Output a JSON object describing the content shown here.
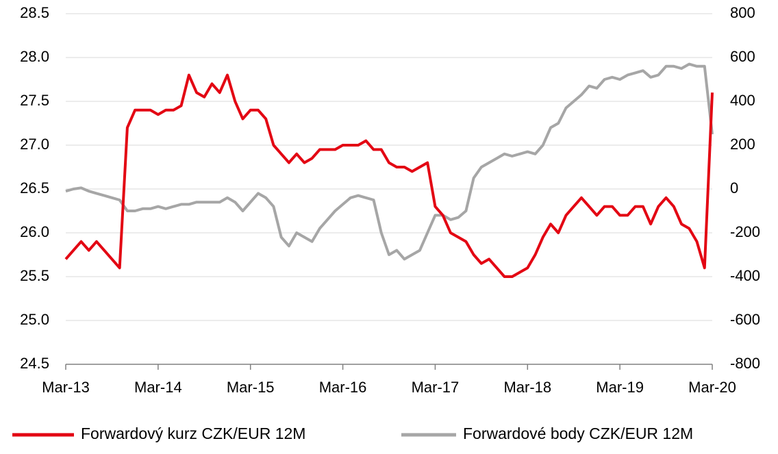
{
  "chart_data": {
    "type": "line",
    "x": [
      "2013-03",
      "2013-04",
      "2013-05",
      "2013-06",
      "2013-07",
      "2013-08",
      "2013-09",
      "2013-10",
      "2013-11",
      "2013-12",
      "2014-01",
      "2014-02",
      "2014-03",
      "2014-04",
      "2014-05",
      "2014-06",
      "2014-07",
      "2014-08",
      "2014-09",
      "2014-10",
      "2014-11",
      "2014-12",
      "2015-01",
      "2015-02",
      "2015-03",
      "2015-04",
      "2015-05",
      "2015-06",
      "2015-07",
      "2015-08",
      "2015-09",
      "2015-10",
      "2015-11",
      "2015-12",
      "2016-01",
      "2016-02",
      "2016-03",
      "2016-04",
      "2016-05",
      "2016-06",
      "2016-07",
      "2016-08",
      "2016-09",
      "2016-10",
      "2016-11",
      "2016-12",
      "2017-01",
      "2017-02",
      "2017-03",
      "2017-04",
      "2017-05",
      "2017-06",
      "2017-07",
      "2017-08",
      "2017-09",
      "2017-10",
      "2017-11",
      "2017-12",
      "2018-01",
      "2018-02",
      "2018-03",
      "2018-04",
      "2018-05",
      "2018-06",
      "2018-07",
      "2018-08",
      "2018-09",
      "2018-10",
      "2018-11",
      "2018-12",
      "2019-01",
      "2019-02",
      "2019-03",
      "2019-04",
      "2019-05",
      "2019-06",
      "2019-07",
      "2019-08",
      "2019-09",
      "2019-10",
      "2019-11",
      "2019-12",
      "2020-01",
      "2020-02",
      "2020-03"
    ],
    "series": [
      {
        "name": "Forwardový kurz CZK/EUR 12M",
        "color": "#e30613",
        "values": [
          25.7,
          25.8,
          25.9,
          25.8,
          25.9,
          25.8,
          25.7,
          25.6,
          27.2,
          27.4,
          27.4,
          27.4,
          27.35,
          27.4,
          27.4,
          27.45,
          27.8,
          27.6,
          27.55,
          27.7,
          27.6,
          27.8,
          27.5,
          27.3,
          27.4,
          27.4,
          27.3,
          27.0,
          26.9,
          26.8,
          26.9,
          26.8,
          26.85,
          26.95,
          26.95,
          26.95,
          27.0,
          27.0,
          27.0,
          27.05,
          26.95,
          26.95,
          26.8,
          26.75,
          26.75,
          26.7,
          26.75,
          26.8,
          26.3,
          26.2,
          26.0,
          25.95,
          25.9,
          25.75,
          25.65,
          25.7,
          25.6,
          25.5,
          25.5,
          25.55,
          25.6,
          25.75,
          25.95,
          26.1,
          26.0,
          26.2,
          26.3,
          26.4,
          26.3,
          26.2,
          26.3,
          26.3,
          26.2,
          26.2,
          26.3,
          26.3,
          26.1,
          26.3,
          26.4,
          26.3,
          26.1,
          26.05,
          25.9,
          25.6,
          27.6
        ]
      },
      {
        "name": "Forwardové body CZK/EUR 12M",
        "color": "#a6a6a6",
        "axis": "y2",
        "values": [
          -10,
          0,
          5,
          -10,
          -20,
          -30,
          -40,
          -50,
          -100,
          -100,
          -90,
          -90,
          -80,
          -90,
          -80,
          -70,
          -70,
          -60,
          -60,
          -60,
          -60,
          -40,
          -60,
          -100,
          -60,
          -20,
          -40,
          -80,
          -220,
          -260,
          -200,
          -220,
          -240,
          -180,
          -140,
          -100,
          -70,
          -40,
          -30,
          -40,
          -50,
          -200,
          -300,
          -280,
          -320,
          -300,
          -280,
          -200,
          -120,
          -120,
          -140,
          -130,
          -100,
          50,
          100,
          120,
          140,
          160,
          150,
          160,
          170,
          160,
          200,
          280,
          300,
          370,
          400,
          430,
          470,
          460,
          500,
          510,
          500,
          520,
          530,
          540,
          510,
          520,
          560,
          560,
          550,
          570,
          560,
          560,
          250
        ]
      }
    ],
    "xlim": [
      "2013-03",
      "2020-03"
    ],
    "xticks": [
      {
        "value": "2013-03",
        "label": "Mar-13"
      },
      {
        "value": "2014-03",
        "label": "Mar-14"
      },
      {
        "value": "2015-03",
        "label": "Mar-15"
      },
      {
        "value": "2016-03",
        "label": "Mar-16"
      },
      {
        "value": "2017-03",
        "label": "Mar-17"
      },
      {
        "value": "2018-03",
        "label": "Mar-18"
      },
      {
        "value": "2019-03",
        "label": "Mar-19"
      },
      {
        "value": "2020-03",
        "label": "Mar-20"
      }
    ],
    "ylim": [
      24.5,
      28.5
    ],
    "yticks": [
      24.5,
      {
        "value": 25,
        "label": "25.0"
      },
      25.5,
      {
        "value": 26,
        "label": "26.0"
      },
      26.5,
      {
        "value": 27,
        "label": "27.0"
      },
      27.5,
      {
        "value": 28,
        "label": "28.0"
      },
      28.5
    ],
    "y2lim": [
      -800,
      800
    ],
    "y2ticks": [
      -800,
      -600,
      -400,
      -200,
      0,
      200,
      400,
      600,
      800
    ],
    "grid": true
  }
}
